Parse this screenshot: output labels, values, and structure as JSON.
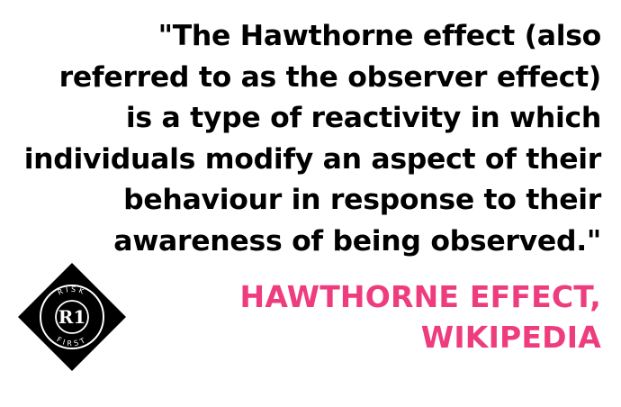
{
  "quote": {
    "lines": [
      "\"The Hawthorne effect (also",
      "referred to as the observer effect)",
      "is a type of reactivity in which",
      "individuals modify an aspect of their",
      "behaviour in response to their",
      "awareness of being observed.\""
    ]
  },
  "attribution": {
    "lines": [
      "HAWTHORNE EFFECT,",
      "WIKIPEDIA"
    ],
    "color": "#ee3d7e"
  },
  "logo": {
    "monogram": "R1",
    "top_text": "RISK",
    "bottom_text": "FIRST"
  }
}
